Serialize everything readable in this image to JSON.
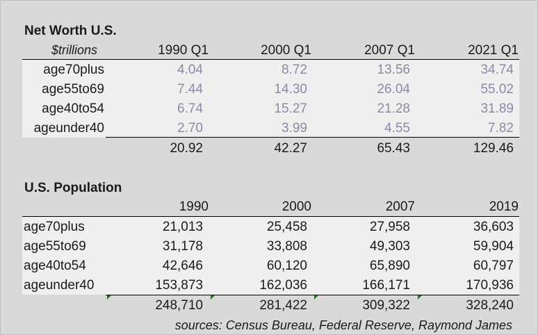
{
  "net_worth": {
    "title": "Net Worth U.S.",
    "units": "$trillions",
    "columns": [
      "1990 Q1",
      "2000 Q1",
      "2007 Q1",
      "2021 Q1"
    ],
    "rows": [
      {
        "label": "age70plus",
        "values": [
          "4.04",
          "8.72",
          "13.56",
          "34.74"
        ]
      },
      {
        "label": "age55to69",
        "values": [
          "7.44",
          "14.30",
          "26.04",
          "55.02"
        ]
      },
      {
        "label": "age40to54",
        "values": [
          "6.74",
          "15.27",
          "21.28",
          "31.89"
        ]
      },
      {
        "label": "ageunder40",
        "values": [
          "2.70",
          "3.99",
          "4.55",
          "7.82"
        ]
      }
    ],
    "totals": [
      "20.92",
      "42.27",
      "65.43",
      "129.46"
    ]
  },
  "population": {
    "title": "U.S. Population",
    "columns": [
      "1990",
      "2000",
      "2007",
      "2019"
    ],
    "rows": [
      {
        "label": "age70plus",
        "values": [
          "21,013",
          "25,458",
          "27,958",
          "36,603"
        ]
      },
      {
        "label": "age55to69",
        "values": [
          "31,178",
          "33,808",
          "49,303",
          "59,904"
        ]
      },
      {
        "label": "age40to54",
        "values": [
          "42,646",
          "60,120",
          "65,890",
          "60,797"
        ]
      },
      {
        "label": "ageunder40",
        "values": [
          "153,873",
          "162,036",
          "166,171",
          "170,936"
        ]
      }
    ],
    "totals": [
      "248,710",
      "281,422",
      "309,322",
      "328,240"
    ]
  },
  "sources": "sources: Census Bureau, Federal Reserve, Raymond James",
  "colors": {
    "background": "#d9d9d9",
    "band": "#efefef",
    "net_worth_values": "#8a8aa6",
    "marker": "#1a7a1a"
  }
}
